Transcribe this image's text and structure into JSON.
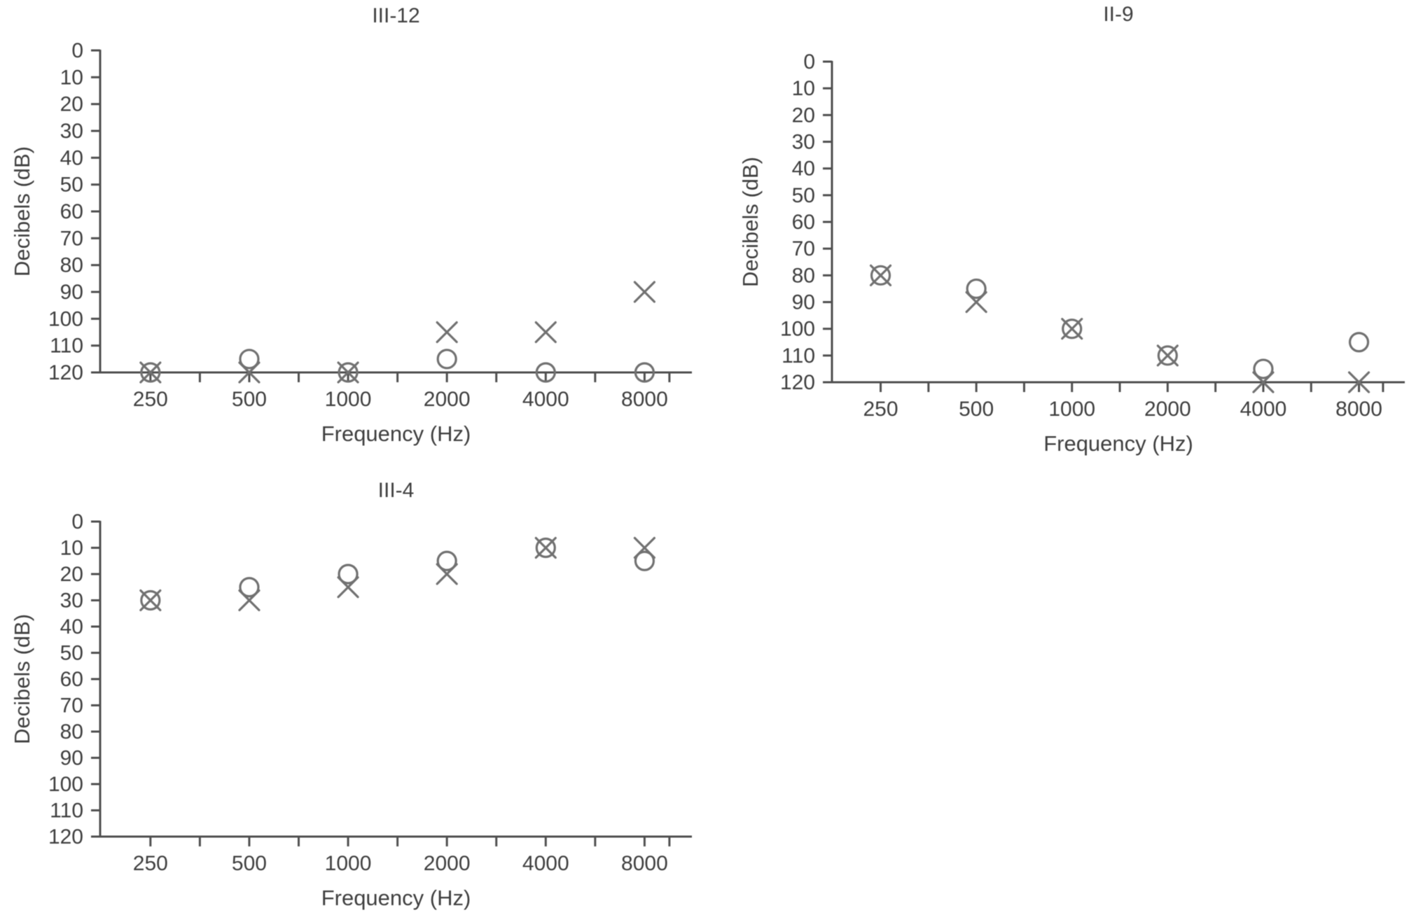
{
  "figure": {
    "background": "#ffffff"
  },
  "colors": {
    "text": "#3f3f3f",
    "axis": "#4f4f4f",
    "marker": "#717171"
  },
  "chart_data": [
    {
      "type": "scatter",
      "title": "III-12",
      "xlabel": "Frequency (Hz)",
      "ylabel": "Decibels (dB)",
      "categories": [
        "250",
        "500",
        "1000",
        "2000",
        "4000",
        "8000"
      ],
      "yticks": [
        "0",
        "10",
        "20",
        "30",
        "40",
        "50",
        "60",
        "70",
        "80",
        "90",
        "100",
        "110",
        "120"
      ],
      "ylim": [
        0,
        120
      ],
      "y_axis_inverted_down": true,
      "grid": "off",
      "legend": "none",
      "series": [
        {
          "name": "circle-symbol",
          "marker": "circle",
          "values": [
            120,
            115,
            120,
            115,
            120,
            120
          ]
        },
        {
          "name": "x-symbol",
          "marker": "x",
          "values": [
            120,
            120,
            120,
            105,
            105,
            90
          ]
        }
      ]
    },
    {
      "type": "scatter",
      "title": "II-9",
      "xlabel": "Frequency (Hz)",
      "ylabel": "Decibels (dB)",
      "categories": [
        "250",
        "500",
        "1000",
        "2000",
        "4000",
        "8000"
      ],
      "yticks": [
        "0",
        "10",
        "20",
        "30",
        "40",
        "50",
        "60",
        "70",
        "80",
        "90",
        "100",
        "110",
        "120"
      ],
      "ylim": [
        0,
        120
      ],
      "y_axis_inverted_down": true,
      "grid": "off",
      "legend": "none",
      "series": [
        {
          "name": "circle-symbol",
          "marker": "circle",
          "values": [
            80,
            85,
            100,
            110,
            115,
            105
          ]
        },
        {
          "name": "x-symbol",
          "marker": "x",
          "values": [
            80,
            90,
            100,
            110,
            120,
            120
          ]
        }
      ]
    },
    {
      "type": "scatter",
      "title": "III-4",
      "xlabel": "Frequency (Hz)",
      "ylabel": "Decibels (dB)",
      "categories": [
        "250",
        "500",
        "1000",
        "2000",
        "4000",
        "8000"
      ],
      "yticks": [
        "0",
        "10",
        "20",
        "30",
        "40",
        "50",
        "60",
        "70",
        "80",
        "90",
        "100",
        "110",
        "120"
      ],
      "ylim": [
        0,
        120
      ],
      "y_axis_inverted_down": true,
      "grid": "off",
      "legend": "none",
      "series": [
        {
          "name": "circle-symbol",
          "marker": "circle",
          "values": [
            30,
            25,
            20,
            15,
            10,
            15
          ]
        },
        {
          "name": "x-symbol",
          "marker": "x",
          "values": [
            30,
            30,
            25,
            20,
            10,
            10
          ]
        }
      ]
    }
  ]
}
